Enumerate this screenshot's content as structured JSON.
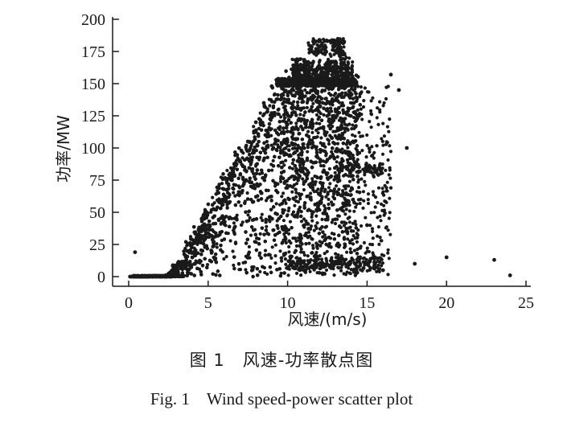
{
  "chart_data": {
    "type": "scatter",
    "xlabel": "风速/(m/s)",
    "ylabel": "功率/MW",
    "xlim": [
      0,
      25
    ],
    "ylim": [
      0,
      200
    ],
    "x_ticks": [
      "0",
      "5",
      "10",
      "15",
      "20",
      "25"
    ],
    "y_ticks": [
      "0",
      "25",
      "50",
      "75",
      "100",
      "125",
      "150",
      "175",
      "200"
    ],
    "grid": false,
    "marker_color": "#1a1a1a",
    "points": [
      {
        "x": 0.4,
        "y": 19
      },
      {
        "x": 0.5,
        "y": 0
      },
      {
        "x": 1.0,
        "y": 0
      },
      {
        "x": 1.5,
        "y": 0
      },
      {
        "x": 2.0,
        "y": 0.5
      },
      {
        "x": 2.5,
        "y": 2
      },
      {
        "x": 3.0,
        "y": 4
      },
      {
        "x": 3.5,
        "y": 8
      },
      {
        "x": 4.0,
        "y": 15
      },
      {
        "x": 4.5,
        "y": 28
      },
      {
        "x": 5.0,
        "y": 40
      },
      {
        "x": 5.5,
        "y": 52
      },
      {
        "x": 6.0,
        "y": 63
      },
      {
        "x": 6.5,
        "y": 75
      },
      {
        "x": 7.0,
        "y": 90
      },
      {
        "x": 7.5,
        "y": 105
      },
      {
        "x": 8.0,
        "y": 120
      },
      {
        "x": 8.5,
        "y": 135
      },
      {
        "x": 9.0,
        "y": 148
      },
      {
        "x": 9.5,
        "y": 150
      },
      {
        "x": 10.0,
        "y": 152
      },
      {
        "x": 10.5,
        "y": 160
      },
      {
        "x": 11.0,
        "y": 163
      },
      {
        "x": 11.5,
        "y": 175
      },
      {
        "x": 12.0,
        "y": 184
      },
      {
        "x": 12.5,
        "y": 183
      },
      {
        "x": 13.0,
        "y": 180
      },
      {
        "x": 13.5,
        "y": 165
      },
      {
        "x": 14.0,
        "y": 150
      },
      {
        "x": 14.5,
        "y": 85
      },
      {
        "x": 15.0,
        "y": 40
      },
      {
        "x": 15.5,
        "y": 10
      },
      {
        "x": 16.0,
        "y": 5
      },
      {
        "x": 16.5,
        "y": 157
      },
      {
        "x": 17.0,
        "y": 145
      },
      {
        "x": 17.5,
        "y": 100
      },
      {
        "x": 18.0,
        "y": 10
      },
      {
        "x": 20.0,
        "y": 15
      },
      {
        "x": 23.0,
        "y": 13
      },
      {
        "x": 24.0,
        "y": 1
      }
    ]
  },
  "caption": {
    "cn": "图 1　风速-功率散点图",
    "en": "Fig. 1　Wind speed-power scatter plot"
  }
}
